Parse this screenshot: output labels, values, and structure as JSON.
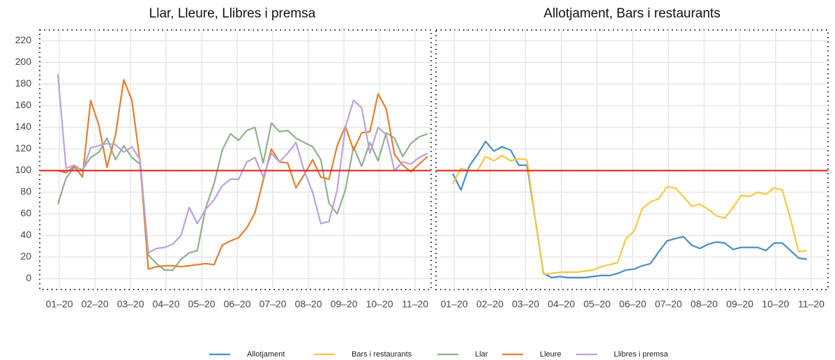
{
  "chart_data": [
    {
      "type": "line",
      "title": "Llar, Lleure, Llibres i premsa",
      "x": [
        0.96,
        1.19,
        1.42,
        1.65,
        1.88,
        2.11,
        2.34,
        2.58,
        2.81,
        3.04,
        3.27,
        3.5,
        3.73,
        3.96,
        4.19,
        4.42,
        4.65,
        4.88,
        5.11,
        5.35,
        5.58,
        5.81,
        6.04,
        6.27,
        6.5,
        6.73,
        6.96,
        7.19,
        7.42,
        7.65,
        7.88,
        8.12,
        8.35,
        8.58,
        8.81,
        9.04,
        9.27,
        9.5,
        9.73,
        9.96,
        10.19,
        10.42,
        10.65,
        10.88,
        11.11,
        11.35
      ],
      "series": [
        {
          "name": "Llar",
          "color": "#8fb08c",
          "values": [
            69,
            93,
            103,
            101,
            112,
            117,
            130,
            110,
            123,
            112,
            106,
            22,
            14,
            8,
            8,
            18,
            24,
            26,
            65,
            88,
            119,
            134,
            128,
            137,
            140,
            107,
            144,
            136,
            137,
            130,
            126,
            122,
            110,
            70,
            60,
            82,
            122,
            104,
            126,
            109,
            135,
            130,
            113,
            125,
            131,
            134
          ]
        },
        {
          "name": "Lleure",
          "color": "#e67e30",
          "values": [
            100,
            98,
            104,
            94,
            165,
            142,
            103,
            133,
            184,
            165,
            108,
            9,
            11,
            12,
            12,
            11,
            12,
            13,
            14,
            13,
            31,
            35,
            38,
            47,
            61,
            91,
            120,
            108,
            107,
            84,
            96,
            110,
            94,
            92,
            123,
            141,
            119,
            135,
            136,
            171,
            157,
            115,
            105,
            99,
            106,
            113
          ]
        },
        {
          "name": "Llibres i premsa",
          "color": "#b9a2dd",
          "values": [
            189,
            102,
            105,
            100,
            121,
            123,
            125,
            124,
            117,
            122,
            110,
            24,
            28,
            29,
            32,
            40,
            66,
            51,
            64,
            73,
            86,
            92,
            92,
            108,
            112,
            94,
            116,
            108,
            116,
            126,
            100,
            80,
            51,
            53,
            82,
            140,
            165,
            158,
            116,
            140,
            133,
            100,
            108,
            106,
            112,
            116
          ]
        }
      ],
      "xlim": [
        0.45,
        11.45
      ],
      "ylim": [
        -10,
        230
      ],
      "xticks": [
        {
          "value": 1,
          "label": "01–20"
        },
        {
          "value": 2,
          "label": "02–20"
        },
        {
          "value": 3,
          "label": "03–20"
        },
        {
          "value": 4,
          "label": "04–20"
        },
        {
          "value": 5,
          "label": "05–20"
        },
        {
          "value": 6,
          "label": "06–20"
        },
        {
          "value": 7,
          "label": "07–20"
        },
        {
          "value": 8,
          "label": "08–20"
        },
        {
          "value": 9,
          "label": "09–20"
        },
        {
          "value": 10,
          "label": "10–20"
        },
        {
          "value": 11,
          "label": "11–20"
        }
      ],
      "yticks": [
        0,
        20,
        40,
        60,
        80,
        100,
        120,
        140,
        160,
        180,
        200,
        220
      ],
      "hline": 100,
      "hline_color": "#e8191a",
      "grid": true
    },
    {
      "type": "line",
      "title": "Allotjament, Bars i restaurants",
      "x": [
        0.96,
        1.19,
        1.42,
        1.65,
        1.88,
        2.11,
        2.34,
        2.58,
        2.81,
        3.04,
        3.27,
        3.5,
        3.73,
        3.96,
        4.19,
        4.42,
        4.65,
        4.88,
        5.11,
        5.35,
        5.58,
        5.81,
        6.04,
        6.27,
        6.5,
        6.73,
        6.96,
        7.19,
        7.42,
        7.65,
        7.88,
        8.12,
        8.35,
        8.58,
        8.81,
        9.04,
        9.27,
        9.5,
        9.73,
        9.96,
        10.19,
        10.42,
        10.65,
        10.88
      ],
      "series": [
        {
          "name": "Allotjament",
          "color": "#4a8ec2",
          "values": [
            97,
            82,
            104,
            115,
            127,
            118,
            122,
            119,
            105,
            105,
            55,
            5,
            1,
            2,
            1,
            1,
            1,
            2,
            3,
            3,
            5,
            8,
            9,
            12,
            14,
            25,
            35,
            37,
            39,
            31,
            28,
            32,
            34,
            33,
            27,
            29,
            29,
            29,
            26,
            33,
            33,
            26,
            19,
            18
          ]
        },
        {
          "name": "Bars i restaurants",
          "color": "#f5c842",
          "values": [
            88,
            102,
            100,
            100,
            113,
            109,
            114,
            109,
            111,
            110,
            55,
            4,
            5,
            6,
            6,
            6,
            7,
            8,
            11,
            13,
            15,
            37,
            44,
            65,
            71,
            74,
            85,
            84,
            76,
            67,
            69,
            64,
            58,
            56,
            66,
            77,
            76,
            80,
            78,
            84,
            82,
            55,
            25,
            26
          ]
        }
      ],
      "xlim": [
        0.49,
        11.47
      ],
      "ylim": [
        -10,
        230
      ],
      "xticks": [
        {
          "value": 1,
          "label": "01–20"
        },
        {
          "value": 2,
          "label": "02–20"
        },
        {
          "value": 3,
          "label": "03–20"
        },
        {
          "value": 4,
          "label": "04–20"
        },
        {
          "value": 5,
          "label": "05–20"
        },
        {
          "value": 6,
          "label": "06–20"
        },
        {
          "value": 7,
          "label": "07–20"
        },
        {
          "value": 8,
          "label": "08–20"
        },
        {
          "value": 9,
          "label": "09–20"
        },
        {
          "value": 10,
          "label": "10–20"
        },
        {
          "value": 11,
          "label": "11–20"
        }
      ],
      "yticks": [
        0,
        20,
        40,
        60,
        80,
        100,
        120,
        140,
        160,
        180,
        200,
        220
      ],
      "hline": 100,
      "hline_color": "#e8191a",
      "grid": true
    }
  ]
}
